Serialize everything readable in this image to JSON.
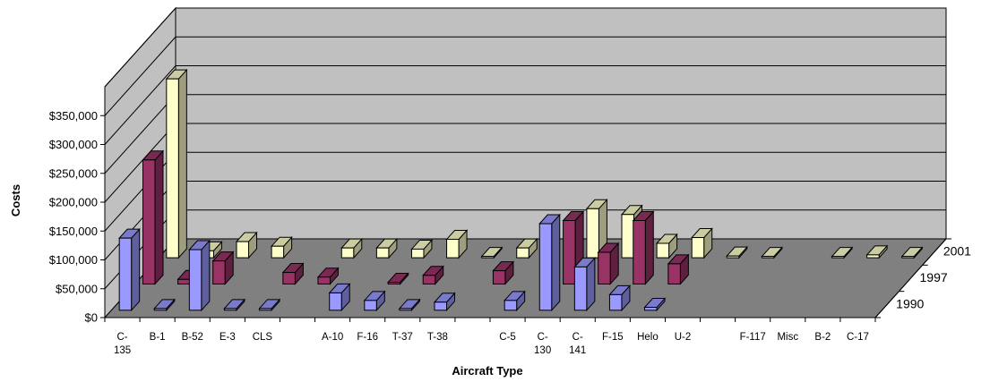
{
  "chart_data": {
    "type": "bar",
    "subtype": "3d-clustered-depth",
    "xlabel": "Aircraft Type",
    "ylabel": "Costs",
    "ylim": [
      0,
      400000
    ],
    "y_ticks": [
      "$0",
      "$50,000",
      "$100,000",
      "$150,000",
      "$200,000",
      "$250,000",
      "$300,000",
      "$350,000"
    ],
    "grid": true,
    "categories": [
      "C-135",
      "B-1",
      "B-52",
      "E-3",
      "CLS",
      "",
      "A-10",
      "F-16",
      "T-37",
      "T-38",
      "",
      "C-5",
      "C-130",
      "C-141",
      "F-15",
      "Helo",
      "U-2",
      "",
      "F-117",
      "Misc",
      "B-2",
      "C-17"
    ],
    "category_label_lines": [
      [
        "C-",
        "135"
      ],
      [
        "B-1"
      ],
      [
        "B-52"
      ],
      [
        "E-3"
      ],
      [
        "CLS"
      ],
      [
        ""
      ],
      [
        "A-10"
      ],
      [
        "F-16"
      ],
      [
        "T-37"
      ],
      [
        "T-38"
      ],
      [
        ""
      ],
      [
        "C-5"
      ],
      [
        "C-",
        "130"
      ],
      [
        "C-",
        "141"
      ],
      [
        "F-15"
      ],
      [
        "Helo"
      ],
      [
        "U-2"
      ],
      [
        ""
      ],
      [
        "F-117"
      ],
      [
        "Misc"
      ],
      [
        "B-2"
      ],
      [
        "C-17"
      ]
    ],
    "depth_labels": [
      "1990",
      "1997",
      "2001"
    ],
    "series": [
      {
        "name": "1990",
        "color": "#9999ff",
        "values": [
          125000,
          3000,
          105000,
          3000,
          3000,
          0,
          30000,
          17000,
          3000,
          14000,
          0,
          17000,
          150000,
          75000,
          27000,
          5000,
          0,
          0,
          0,
          0,
          0,
          0
        ]
      },
      {
        "name": "1997",
        "color": "#993366",
        "values": [
          215000,
          8000,
          40000,
          0,
          20000,
          12000,
          0,
          3000,
          15000,
          0,
          23000,
          0,
          110000,
          55000,
          110000,
          35000,
          0,
          0,
          0,
          0,
          0,
          0
        ]
      },
      {
        "name": "2001",
        "color": "#ffffcc",
        "values": [
          310000,
          12000,
          28000,
          20000,
          0,
          17000,
          17000,
          15000,
          32000,
          2000,
          17000,
          0,
          85000,
          75000,
          25000,
          35000,
          3000,
          2000,
          0,
          2000,
          5000,
          1000
        ]
      }
    ]
  }
}
